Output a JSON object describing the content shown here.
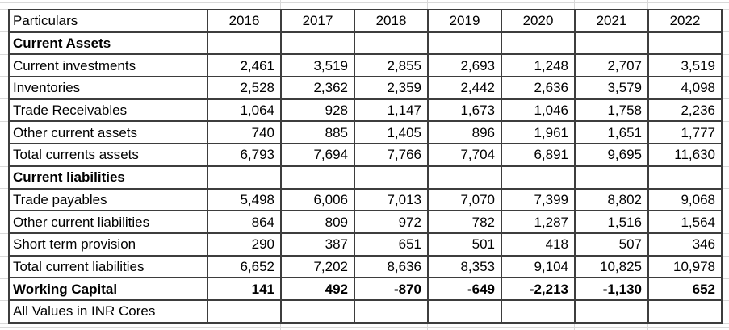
{
  "colors": {
    "background": "#ffffff",
    "cell_border": "#3d3d3d",
    "faint_gridline": "#d9d9d9",
    "text": "#000000"
  },
  "table": {
    "columns": [
      "Particulars",
      "2016",
      "2017",
      "2018",
      "2019",
      "2020",
      "2021",
      "2022"
    ],
    "rows": [
      {
        "label": "Current Assets",
        "style": "section",
        "values": [
          "",
          "",
          "",
          "",
          "",
          "",
          ""
        ]
      },
      {
        "label": "Current investments",
        "style": "data",
        "values": [
          "2,461",
          "3,519",
          "2,855",
          "2,693",
          "1,248",
          "2,707",
          "3,519"
        ]
      },
      {
        "label": "Inventories",
        "style": "data",
        "values": [
          "2,528",
          "2,362",
          "2,359",
          "2,442",
          "2,636",
          "3,579",
          "4,098"
        ]
      },
      {
        "label": "Trade Receivables",
        "style": "data",
        "values": [
          "1,064",
          "928",
          "1,147",
          "1,673",
          "1,046",
          "1,758",
          "2,236"
        ]
      },
      {
        "label": "Other current assets",
        "style": "data",
        "values": [
          "740",
          "885",
          "1,405",
          "896",
          "1,961",
          "1,651",
          "1,777"
        ]
      },
      {
        "label": "Total currents assets",
        "style": "data",
        "values": [
          "6,793",
          "7,694",
          "7,766",
          "7,704",
          "6,891",
          "9,695",
          "11,630"
        ]
      },
      {
        "label": "Current liabilities",
        "style": "section",
        "values": [
          "",
          "",
          "",
          "",
          "",
          "",
          ""
        ]
      },
      {
        "label": "Trade payables",
        "style": "data",
        "values": [
          "5,498",
          "6,006",
          "7,013",
          "7,070",
          "7,399",
          "8,802",
          "9,068"
        ]
      },
      {
        "label": "Other current liabilities",
        "style": "data",
        "values": [
          "864",
          "809",
          "972",
          "782",
          "1,287",
          "1,516",
          "1,564"
        ]
      },
      {
        "label": "Short term provision",
        "style": "data",
        "values": [
          "290",
          "387",
          "651",
          "501",
          "418",
          "507",
          "346"
        ]
      },
      {
        "label": "Total current liabilities",
        "style": "data",
        "values": [
          "6,652",
          "7,202",
          "8,636",
          "8,353",
          "9,104",
          "10,825",
          "10,978"
        ]
      },
      {
        "label": "Working Capital",
        "style": "bold",
        "values": [
          "141",
          "492",
          "-870",
          "-649",
          "-2,213",
          "-1,130",
          "652"
        ]
      },
      {
        "label": "All Values in INR Cores",
        "style": "note",
        "values": [
          "",
          "",
          "",
          "",
          "",
          "",
          ""
        ]
      }
    ]
  }
}
